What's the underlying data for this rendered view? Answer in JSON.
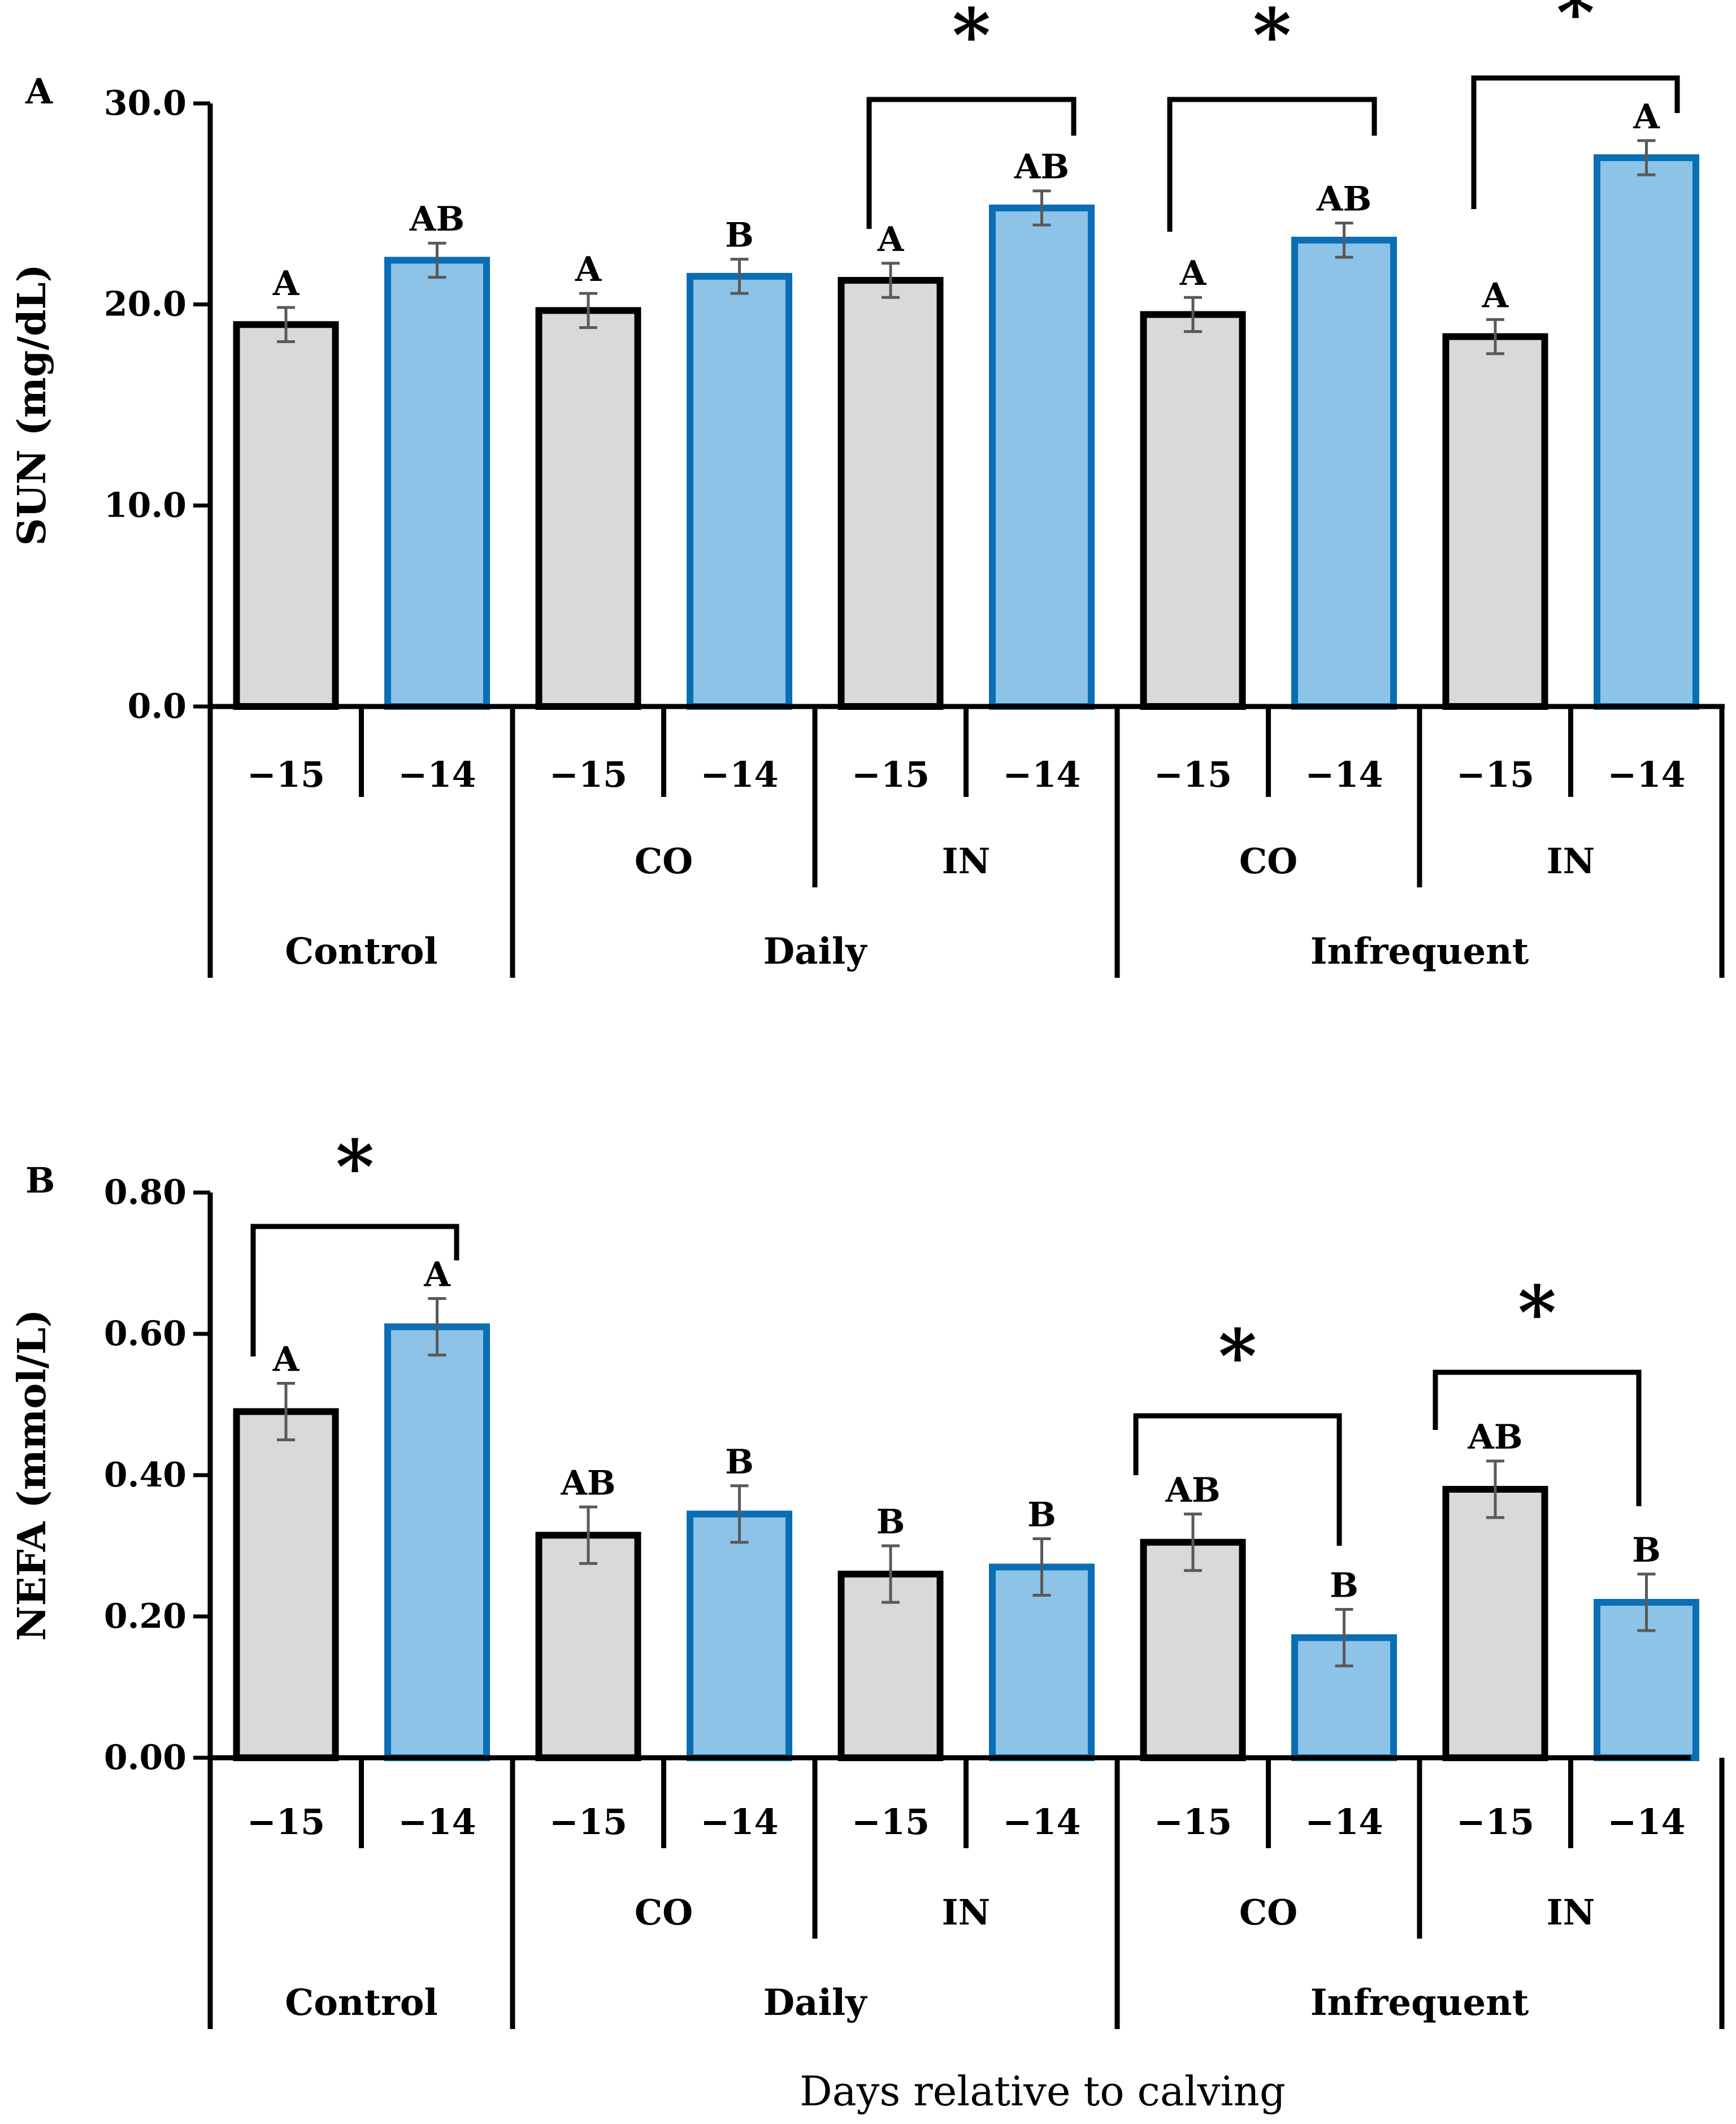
{
  "chart_data": [
    {
      "panel_label": "A",
      "type": "bar",
      "ylabel": "SUN (mg/dL)",
      "ylim": [
        0,
        30
      ],
      "yticks": [
        "0.0",
        "10.0",
        "20.0",
        "30.0"
      ],
      "ytick_values": [
        0,
        10,
        20,
        30
      ],
      "categories": [
        "−15",
        "−14",
        "−15",
        "−14",
        "−15",
        "−14",
        "−15",
        "−14",
        "−15",
        "−14"
      ],
      "values": [
        19.0,
        22.2,
        19.7,
        21.4,
        21.2,
        24.8,
        19.5,
        23.2,
        18.4,
        27.3
      ],
      "errors": [
        0.85,
        0.85,
        0.85,
        0.85,
        0.85,
        0.85,
        0.85,
        0.85,
        0.85,
        0.85
      ],
      "letters": [
        "A",
        "AB",
        "A",
        "B",
        "A",
        "AB",
        "A",
        "AB",
        "A",
        "A"
      ],
      "subgroups": [
        "",
        "CO",
        "IN",
        "CO",
        "IN"
      ],
      "groups": [
        "Control",
        "Daily",
        "Infrequent"
      ],
      "significance": [
        {
          "pair": [
            4,
            5
          ],
          "marker": "*"
        },
        {
          "pair": [
            6,
            7
          ],
          "marker": "*"
        },
        {
          "pair": [
            8,
            9
          ],
          "marker": "*"
        }
      ]
    },
    {
      "panel_label": "B",
      "type": "bar",
      "ylabel": "NEFA (mmol/L)",
      "ylim": [
        0,
        0.8
      ],
      "yticks": [
        "0.00",
        "0.20",
        "0.40",
        "0.60",
        "0.80"
      ],
      "ytick_values": [
        0,
        0.2,
        0.4,
        0.6,
        0.8
      ],
      "categories": [
        "−15",
        "−14",
        "−15",
        "−14",
        "−15",
        "−14",
        "−15",
        "−14",
        "−15",
        "−14"
      ],
      "values": [
        0.49,
        0.61,
        0.315,
        0.345,
        0.26,
        0.27,
        0.305,
        0.17,
        0.38,
        0.22
      ],
      "errors": [
        0.04,
        0.04,
        0.04,
        0.04,
        0.04,
        0.04,
        0.04,
        0.04,
        0.04,
        0.04
      ],
      "letters": [
        "A",
        "A",
        "AB",
        "B",
        "B",
        "B",
        "AB",
        "B",
        "AB",
        "B"
      ],
      "subgroups": [
        "",
        "CO",
        "IN",
        "CO",
        "IN"
      ],
      "groups": [
        "Control",
        "Daily",
        "Infrequent"
      ],
      "significance": [
        {
          "pair": [
            0,
            1
          ],
          "marker": "*"
        },
        {
          "pair": [
            6,
            7
          ],
          "marker": "*"
        },
        {
          "pair": [
            8,
            9
          ],
          "marker": "*"
        }
      ]
    }
  ],
  "xlabel": "Days relative to calving",
  "colors": {
    "pre_fill": "#d9d9d9",
    "pre_stroke": "#000000",
    "post_fill": "#8dc3e6",
    "post_stroke": "#0a6eb4",
    "error_bar": "#595959"
  }
}
